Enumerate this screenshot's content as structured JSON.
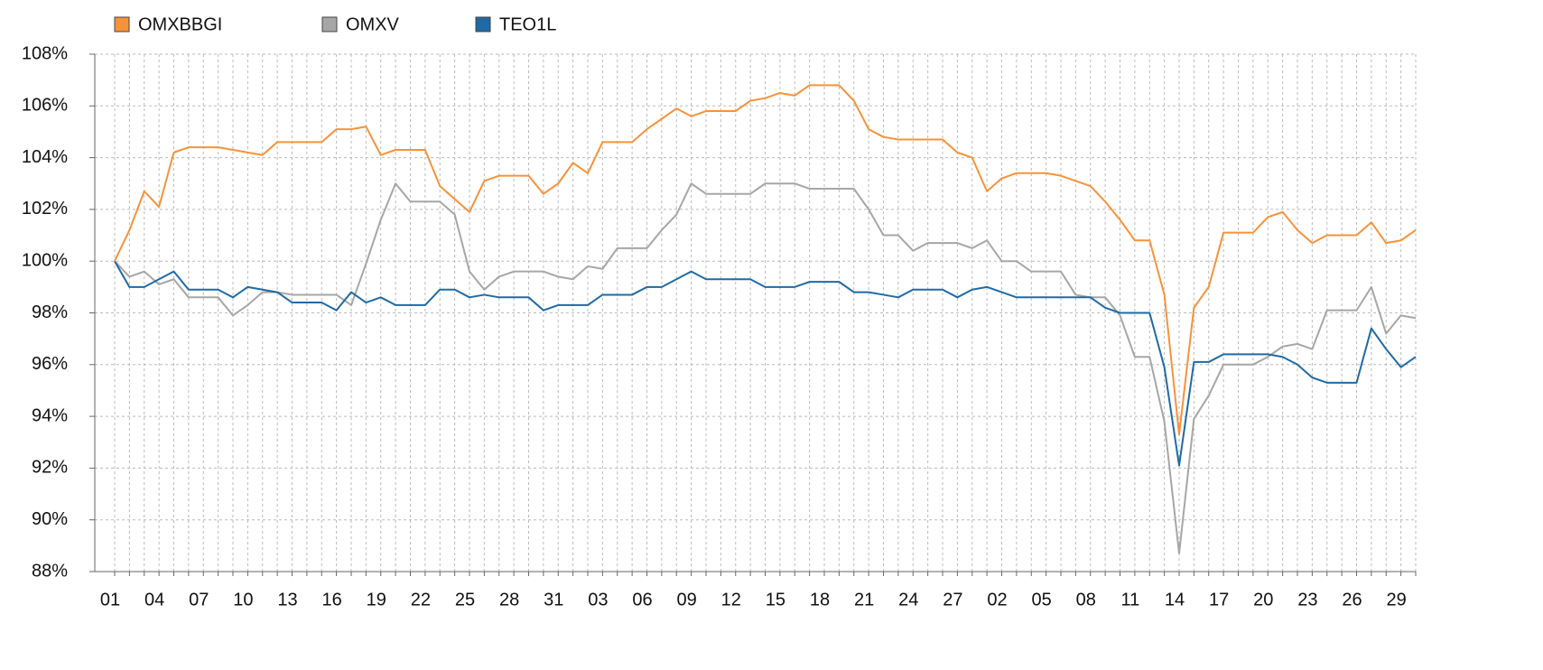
{
  "chart_data": {
    "type": "line",
    "categories": [
      "01",
      null,
      null,
      "04",
      null,
      null,
      "07",
      null,
      null,
      "10",
      null,
      null,
      "13",
      null,
      null,
      "16",
      null,
      null,
      "19",
      null,
      null,
      "22",
      null,
      null,
      "25",
      null,
      null,
      "28",
      null,
      null,
      "31",
      null,
      null,
      "03",
      null,
      null,
      "06",
      null,
      null,
      "09",
      null,
      null,
      "12",
      null,
      null,
      "15",
      null,
      null,
      "18",
      null,
      null,
      "21",
      null,
      null,
      "24",
      null,
      null,
      "27",
      null,
      null,
      "02",
      null,
      null,
      "05",
      null,
      null,
      "08",
      null,
      null,
      "11",
      null,
      null,
      "14",
      null,
      null,
      "17",
      null,
      null,
      "20",
      null,
      null,
      "23",
      null,
      null,
      "26",
      null,
      null,
      "29",
      null
    ],
    "series": [
      {
        "name": "OMXBBGI",
        "color": "#f7923a",
        "values": [
          100,
          101.2,
          102.7,
          102.1,
          104.2,
          104.4,
          104.4,
          104.4,
          104.3,
          104.2,
          104.1,
          104.6,
          104.6,
          104.6,
          104.6,
          105.1,
          105.1,
          105.2,
          104.1,
          104.3,
          104.3,
          104.3,
          102.9,
          102.4,
          101.9,
          103.1,
          103.3,
          103.3,
          103.3,
          102.6,
          103.0,
          103.8,
          103.4,
          104.6,
          104.6,
          104.6,
          105.1,
          105.5,
          105.9,
          105.6,
          105.8,
          105.8,
          105.8,
          106.2,
          106.3,
          106.5,
          106.4,
          106.8,
          106.8,
          106.8,
          106.2,
          105.1,
          104.8,
          104.7,
          104.7,
          104.7,
          104.7,
          104.2,
          104.0,
          102.7,
          103.2,
          103.4,
          103.4,
          103.4,
          103.3,
          103.1,
          102.9,
          102.3,
          101.6,
          100.8,
          100.8,
          98.7,
          93.3,
          98.2,
          99.0,
          101.1,
          101.1,
          101.1,
          101.7,
          101.9,
          101.2,
          100.7,
          101.0,
          101.0,
          101.0,
          101.5,
          100.7,
          100.8,
          101.2
        ]
      },
      {
        "name": "OMXV",
        "color": "#a6a6a6",
        "values": [
          100,
          99.4,
          99.6,
          99.1,
          99.3,
          98.6,
          98.6,
          98.6,
          97.9,
          98.3,
          98.8,
          98.8,
          98.7,
          98.7,
          98.7,
          98.7,
          98.3,
          99.9,
          101.6,
          103.0,
          102.3,
          102.3,
          102.3,
          101.8,
          99.6,
          98.9,
          99.4,
          99.6,
          99.6,
          99.6,
          99.4,
          99.3,
          99.8,
          99.7,
          100.5,
          100.5,
          100.5,
          101.2,
          101.8,
          103.0,
          102.6,
          102.6,
          102.6,
          102.6,
          103.0,
          103.0,
          103.0,
          102.8,
          102.8,
          102.8,
          102.8,
          102.0,
          101.0,
          101.0,
          100.4,
          100.7,
          100.7,
          100.7,
          100.5,
          100.8,
          100.0,
          100.0,
          99.6,
          99.6,
          99.6,
          98.7,
          98.6,
          98.6,
          97.9,
          96.3,
          96.3,
          93.8,
          88.7,
          93.9,
          94.8,
          96.0,
          96.0,
          96.0,
          96.3,
          96.7,
          96.8,
          96.6,
          98.1,
          98.1,
          98.1,
          99.0,
          97.2,
          97.9,
          97.8
        ]
      },
      {
        "name": "TEO1L",
        "color": "#1f6aa5",
        "values": [
          100,
          99.0,
          99.0,
          99.3,
          99.6,
          98.9,
          98.9,
          98.9,
          98.6,
          99.0,
          98.9,
          98.8,
          98.4,
          98.4,
          98.4,
          98.1,
          98.8,
          98.4,
          98.6,
          98.3,
          98.3,
          98.3,
          98.9,
          98.9,
          98.6,
          98.7,
          98.6,
          98.6,
          98.6,
          98.1,
          98.3,
          98.3,
          98.3,
          98.7,
          98.7,
          98.7,
          99.0,
          99.0,
          99.3,
          99.6,
          99.3,
          99.3,
          99.3,
          99.3,
          99.0,
          99.0,
          99.0,
          99.2,
          99.2,
          99.2,
          98.8,
          98.8,
          98.7,
          98.6,
          98.9,
          98.9,
          98.9,
          98.6,
          98.9,
          99.0,
          98.8,
          98.6,
          98.6,
          98.6,
          98.6,
          98.6,
          98.6,
          98.2,
          98.0,
          98.0,
          98.0,
          95.9,
          92.1,
          96.1,
          96.1,
          96.4,
          96.4,
          96.4,
          96.4,
          96.3,
          96.0,
          95.5,
          95.3,
          95.3,
          95.3,
          97.4,
          96.6,
          95.9,
          96.3
        ]
      }
    ],
    "ylim": [
      88,
      108
    ],
    "yticks": [
      {
        "value": 88,
        "label": "88%"
      },
      {
        "value": 90,
        "label": "90%"
      },
      {
        "value": 92,
        "label": "92%"
      },
      {
        "value": 94,
        "label": "94%"
      },
      {
        "value": 96,
        "label": "96%"
      },
      {
        "value": 98,
        "label": "98%"
      },
      {
        "value": 100,
        "label": "100%"
      },
      {
        "value": 102,
        "label": "102%"
      },
      {
        "value": 104,
        "label": "104%"
      },
      {
        "value": 106,
        "label": "106%"
      },
      {
        "value": 108,
        "label": "108%"
      }
    ],
    "grid": true,
    "legend": "top"
  }
}
